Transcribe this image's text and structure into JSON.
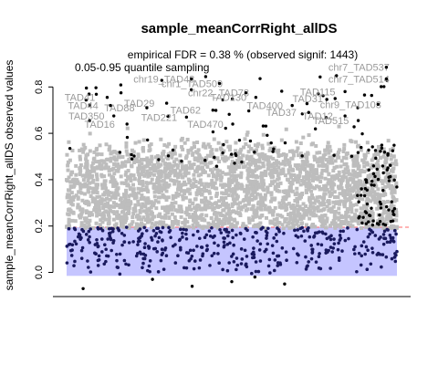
{
  "chart_data": {
    "type": "scatter",
    "title": "sample_meanCorrRight_allDS",
    "subtitle": "empirical FDR = 0.38 % (observed signif: 1443)",
    "ylabel": "sample_meanCorrRight_allDS observed values",
    "xlabel": "",
    "ylim": [
      -0.1,
      0.93
    ],
    "yticks": [
      0.0,
      0.2,
      0.4,
      0.6,
      0.8
    ],
    "yticklabels": [
      "0.0",
      "0.2",
      "0.4",
      "0.6",
      "0.8"
    ],
    "grid": false,
    "legend": "none",
    "band": {
      "label": "0.05-0.95 quantile sampling",
      "lower": -0.015,
      "upper": 0.195,
      "color": "#c5c5ff"
    },
    "threshold_line": {
      "y": 0.195,
      "color": "#ff6a6a"
    },
    "series": [
      {
        "role": "sampled",
        "color": "#bdbdbd",
        "range": [
          0.19,
          0.64
        ]
      },
      {
        "role": "below-band",
        "color": "#1a1a5e",
        "range": [
          -0.015,
          0.195
        ]
      },
      {
        "role": "signif",
        "color": "#000000",
        "range": [
          0.2,
          0.9
        ]
      }
    ],
    "annotations": [
      {
        "label": "chr7_TAD537",
        "x": 0.885,
        "y": 0.885
      },
      {
        "label": "chr7_TAD514",
        "x": 0.885,
        "y": 0.835
      },
      {
        "label": "chr19_TAD48",
        "x": 0.295,
        "y": 0.835
      },
      {
        "label": "chr1_TAD509",
        "x": 0.38,
        "y": 0.815
      },
      {
        "label": "chr22_TAD78",
        "x": 0.46,
        "y": 0.775
      },
      {
        "label": "chr9_TAD103",
        "x": 0.86,
        "y": 0.725
      },
      {
        "label": "TAD41",
        "x": 0.04,
        "y": 0.755
      },
      {
        "label": "TAD350",
        "x": 0.06,
        "y": 0.675
      },
      {
        "label": "TAD130",
        "x": 0.49,
        "y": 0.755
      },
      {
        "label": "TAD400",
        "x": 0.6,
        "y": 0.72
      },
      {
        "label": "TAD115",
        "x": 0.76,
        "y": 0.78
      },
      {
        "label": "TAD31",
        "x": 0.73,
        "y": 0.75
      },
      {
        "label": "TAD12",
        "x": 0.76,
        "y": 0.675
      },
      {
        "label": "TAD29",
        "x": 0.22,
        "y": 0.73
      },
      {
        "label": "TAD88",
        "x": 0.16,
        "y": 0.71
      },
      {
        "label": "TAD44",
        "x": 0.05,
        "y": 0.72
      },
      {
        "label": "TAD62",
        "x": 0.36,
        "y": 0.7
      },
      {
        "label": "TAD515",
        "x": 0.8,
        "y": 0.655
      },
      {
        "label": "TAD37",
        "x": 0.65,
        "y": 0.69
      },
      {
        "label": "TAD221",
        "x": 0.28,
        "y": 0.67
      },
      {
        "label": "TAD16",
        "x": 0.1,
        "y": 0.64
      },
      {
        "label": "TAD470",
        "x": 0.42,
        "y": 0.64
      }
    ]
  }
}
